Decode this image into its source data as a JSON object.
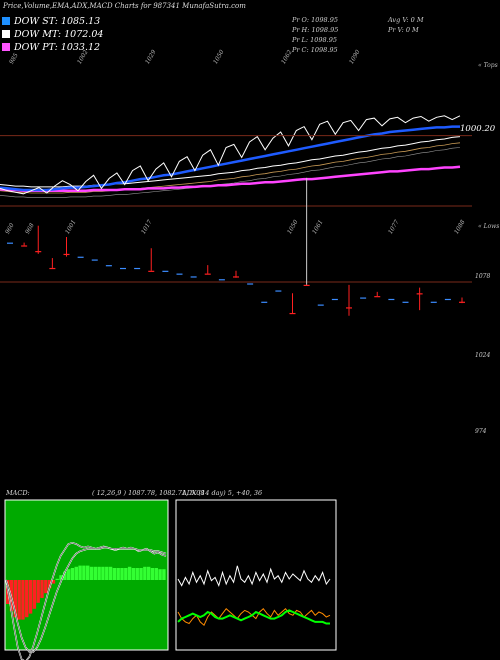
{
  "title": "Price,Volume,EMA,ADX,MACD Charts for 987341 MunafaSutra.com",
  "legend": [
    {
      "label": "DOW ST: 1085.13",
      "color": "#1e90ff"
    },
    {
      "label": "DOW MT: 1072.04",
      "color": "#ffffff"
    },
    {
      "label": "DOW PT: 1033.12",
      "color": "#ff55ff"
    }
  ],
  "info": {
    "pr_o": "Pr   O: 1098.95",
    "pr_h": "Pr   H: 1098.95",
    "pr_l": "Pr   L: 1098.95",
    "pr_c": "Pr   C: 1098.95",
    "avg_v": "Avg V: 0  M",
    "pr_v": "Pr   V: 0  M"
  },
  "colors": {
    "price": "#ffffff",
    "ema_short": "#1e5bff",
    "ema_mid": "#ffffff",
    "ema_long": "#ff44ff",
    "ema_extra": "#c89a55",
    "bull": "#3b8cff",
    "bear": "#ff2020",
    "hline": "#7a2a1a",
    "macd_panel": "#00aa00",
    "macd_up": "#33ff33",
    "macd_down": "#ff2020",
    "adx_green": "#00ff00",
    "adx_orange": "#ff8c00"
  },
  "chart_data": [
    {
      "type": "line",
      "name": "price-ema",
      "right_label": "1000.20",
      "top_ticks": [
        "985",
        "1002",
        "1029",
        "1050",
        "1062",
        "1090"
      ],
      "top_tag": "« Tops",
      "bottom_ticks": [
        "960",
        "968",
        "1001",
        "1017",
        "1050",
        "1061",
        "1077",
        "1088"
      ],
      "bottom_tag": "« Lows",
      "series": [
        {
          "name": "Price",
          "values": [
            1005,
            1002,
            1000,
            998,
            1002,
            1006,
            999,
            1008,
            1015,
            1010,
            1002,
            1014,
            1022,
            1005,
            1018,
            1025,
            1010,
            1028,
            1034,
            1015,
            1030,
            1038,
            1020,
            1040,
            1046,
            1028,
            1048,
            1055,
            1035,
            1058,
            1062,
            1045,
            1065,
            1072,
            1055,
            1070,
            1078,
            1060,
            1080,
            1085,
            1068,
            1088,
            1092,
            1075,
            1090,
            1093,
            1080,
            1094,
            1096,
            1086,
            1095,
            1097,
            1090,
            1096,
            1098,
            1092,
            1097,
            1099,
            1094,
            1099
          ]
        },
        {
          "name": "DOW ST",
          "values": [
            1006,
            1005,
            1004,
            1003,
            1003,
            1003,
            1003,
            1004,
            1005,
            1006,
            1006,
            1007,
            1008,
            1009,
            1010,
            1012,
            1013,
            1015,
            1017,
            1018,
            1020,
            1022,
            1023,
            1025,
            1027,
            1029,
            1031,
            1033,
            1035,
            1037,
            1039,
            1041,
            1043,
            1045,
            1047,
            1049,
            1051,
            1053,
            1055,
            1057,
            1059,
            1061,
            1063,
            1065,
            1067,
            1069,
            1071,
            1073,
            1075,
            1076,
            1078,
            1079,
            1080,
            1081,
            1082,
            1083,
            1084,
            1084,
            1085,
            1085
          ]
        },
        {
          "name": "DOW MT",
          "values": [
            1010,
            1009,
            1008,
            1008,
            1007,
            1007,
            1007,
            1007,
            1007,
            1008,
            1008,
            1008,
            1009,
            1009,
            1010,
            1011,
            1011,
            1012,
            1013,
            1014,
            1015,
            1016,
            1017,
            1018,
            1019,
            1020,
            1021,
            1022,
            1024,
            1025,
            1026,
            1028,
            1029,
            1031,
            1032,
            1034,
            1035,
            1037,
            1038,
            1040,
            1042,
            1043,
            1045,
            1047,
            1048,
            1050,
            1052,
            1053,
            1055,
            1057,
            1058,
            1060,
            1061,
            1063,
            1065,
            1066,
            1068,
            1069,
            1071,
            1072
          ]
        },
        {
          "name": "DOW PT",
          "values": [
            1004,
            1003,
            1003,
            1002,
            1002,
            1002,
            1002,
            1002,
            1002,
            1002,
            1002,
            1002,
            1003,
            1003,
            1003,
            1003,
            1004,
            1004,
            1004,
            1005,
            1005,
            1005,
            1006,
            1006,
            1007,
            1007,
            1008,
            1008,
            1009,
            1009,
            1010,
            1011,
            1011,
            1012,
            1013,
            1013,
            1014,
            1015,
            1016,
            1017,
            1017,
            1018,
            1019,
            1020,
            1021,
            1022,
            1023,
            1024,
            1025,
            1026,
            1027,
            1027,
            1028,
            1029,
            1030,
            1030,
            1031,
            1032,
            1032,
            1033
          ]
        }
      ]
    },
    {
      "type": "bar",
      "name": "candles",
      "levels": [
        "1078",
        "1024",
        "974"
      ],
      "candles": [
        {
          "o": 1050,
          "c": 1050,
          "h": 1050,
          "l": 1050
        },
        {
          "o": 1052,
          "c": 1050,
          "h": 1052,
          "l": 1050
        },
        {
          "o": 1056,
          "c": 1040,
          "h": 1058,
          "l": 1038
        },
        {
          "o": 1068,
          "c": 1062,
          "h": 1068,
          "l": 1061
        },
        {
          "o": 1058,
          "c": 1048,
          "h": 1060,
          "l": 1046
        },
        {
          "o": 1060,
          "c": 1060,
          "h": 1060,
          "l": 1060
        },
        {
          "o": 1062,
          "c": 1062,
          "h": 1062,
          "l": 1062
        },
        {
          "o": 1066,
          "c": 1066,
          "h": 1066,
          "l": 1066
        },
        {
          "o": 1068,
          "c": 1068,
          "h": 1068,
          "l": 1068
        },
        {
          "o": 1068,
          "c": 1068,
          "h": 1068,
          "l": 1068
        },
        {
          "o": 1070,
          "c": 1054,
          "h": 1070,
          "l": 1054
        },
        {
          "o": 1070,
          "c": 1070,
          "h": 1070,
          "l": 1070
        },
        {
          "o": 1072,
          "c": 1072,
          "h": 1072,
          "l": 1072
        },
        {
          "o": 1074,
          "c": 1074,
          "h": 1074,
          "l": 1074
        },
        {
          "o": 1072,
          "c": 1066,
          "h": 1072,
          "l": 1066
        },
        {
          "o": 1076,
          "c": 1076,
          "h": 1076,
          "l": 1076
        },
        {
          "o": 1074,
          "c": 1071,
          "h": 1075,
          "l": 1070
        },
        {
          "o": 1079,
          "c": 1079,
          "h": 1079,
          "l": 1079
        },
        {
          "o": 1092,
          "c": 1092,
          "h": 1092,
          "l": 1092
        },
        {
          "o": 1084,
          "c": 1084,
          "h": 1084,
          "l": 1084
        },
        {
          "o": 1100,
          "c": 1088,
          "h": 1100,
          "l": 1086
        },
        {
          "o": 1080,
          "c": 1074,
          "h": 1080,
          "l": 1004
        },
        {
          "o": 1094,
          "c": 1094,
          "h": 1094,
          "l": 1094
        },
        {
          "o": 1090,
          "c": 1090,
          "h": 1090,
          "l": 1090
        },
        {
          "o": 1096,
          "c": 1080,
          "h": 1102,
          "l": 1080
        },
        {
          "o": 1089,
          "c": 1089,
          "h": 1089,
          "l": 1089
        },
        {
          "o": 1088,
          "c": 1086,
          "h": 1088,
          "l": 1085
        },
        {
          "o": 1090,
          "c": 1090,
          "h": 1090,
          "l": 1090
        },
        {
          "o": 1092,
          "c": 1092,
          "h": 1092,
          "l": 1092
        },
        {
          "o": 1086,
          "c": 1083,
          "h": 1098,
          "l": 1082
        },
        {
          "o": 1092,
          "c": 1092,
          "h": 1092,
          "l": 1092
        },
        {
          "o": 1090,
          "c": 1090,
          "h": 1090,
          "l": 1090
        },
        {
          "o": 1092,
          "c": 1089,
          "h": 1093,
          "l": 1089
        }
      ]
    },
    {
      "type": "line",
      "name": "macd",
      "label_macd": "MACD:",
      "label_values": "( 12,26,9 ) 1087.78,  1082.71,  5.08",
      "histogram": [
        -20,
        -26,
        -31,
        -33,
        -33,
        -31,
        -28,
        -24,
        -19,
        -15,
        -11,
        -7,
        -3,
        1,
        4,
        7,
        9,
        10,
        11,
        12,
        12,
        12,
        11,
        11,
        11,
        11,
        11,
        11,
        10,
        10,
        10,
        10,
        11,
        10,
        10,
        10,
        11,
        11,
        10,
        10,
        9,
        9
      ],
      "macd_line": [
        0,
        -18,
        -38,
        -56,
        -66,
        -68,
        -64,
        -55,
        -44,
        -32,
        -20,
        -8,
        2,
        12,
        20,
        25,
        30,
        31,
        30,
        28,
        27,
        28,
        27,
        26,
        27,
        28,
        27,
        26,
        25,
        26,
        27,
        26,
        27,
        26,
        24,
        25,
        26,
        24,
        22,
        23,
        21,
        20
      ],
      "signal_line": [
        0,
        -10,
        -22,
        -36,
        -48,
        -56,
        -60,
        -60,
        -56,
        -49,
        -40,
        -30,
        -20,
        -10,
        -2,
        6,
        12,
        18,
        22,
        24,
        25,
        26,
        26,
        26,
        26,
        27,
        27,
        26,
        26,
        26,
        26,
        26,
        26,
        26,
        25,
        25,
        25,
        25,
        24,
        24,
        23,
        22
      ]
    },
    {
      "type": "line",
      "name": "adx",
      "label_values": "ADX          (14  day) 5,  +40,  36",
      "series": [
        {
          "name": "+DI",
          "values": [
            40,
            36,
            41,
            37,
            44,
            38,
            42,
            37,
            45,
            39,
            41,
            36,
            44,
            37,
            42,
            38,
            48,
            40,
            38,
            42,
            37,
            44,
            39,
            43,
            38,
            46,
            40,
            42,
            38,
            44,
            40,
            43,
            41,
            39,
            45,
            40,
            38,
            42,
            39,
            44,
            37,
            40
          ]
        },
        {
          "name": "-DI",
          "values": [
            14,
            10,
            8,
            7,
            10,
            12,
            8,
            6,
            11,
            14,
            12,
            10,
            13,
            16,
            14,
            12,
            10,
            13,
            15,
            14,
            12,
            10,
            14,
            16,
            13,
            11,
            15,
            12,
            14,
            16,
            13,
            12,
            15,
            14,
            11,
            13,
            15,
            12,
            14,
            13,
            11,
            12
          ]
        },
        {
          "name": "ADX",
          "values": [
            6,
            8,
            9,
            10,
            11,
            10,
            9,
            10,
            12,
            11,
            9,
            8,
            8,
            9,
            10,
            9,
            8,
            7,
            8,
            9,
            10,
            12,
            11,
            10,
            9,
            8,
            8,
            9,
            10,
            12,
            13,
            12,
            11,
            10,
            9,
            8,
            7,
            6,
            6,
            6,
            5,
            5
          ]
        }
      ]
    }
  ]
}
